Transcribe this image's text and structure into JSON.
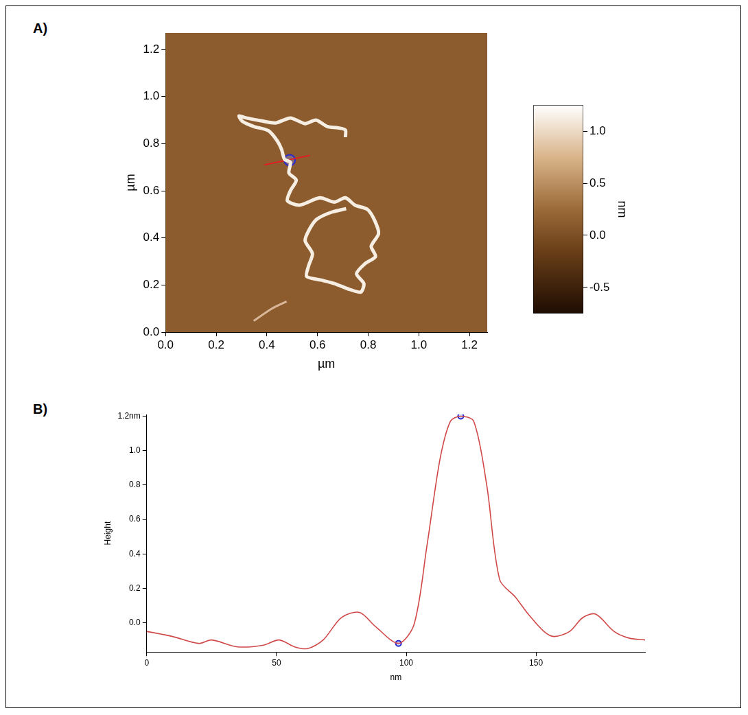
{
  "chart_data": [
    {
      "type": "line",
      "panel_label": "A)",
      "x_label": "µm",
      "y_label": "µm",
      "xlim": [
        0,
        1.27
      ],
      "ylim": [
        0,
        1.27
      ],
      "xticks": [
        {
          "value": 0,
          "label": "0.0"
        },
        0.2,
        0.4,
        0.6,
        0.8,
        {
          "value": 1,
          "label": "1.0"
        },
        1.2
      ],
      "yticks": [
        {
          "value": 0,
          "label": "0.0"
        },
        0.2,
        0.4,
        0.6,
        0.8,
        {
          "value": 1,
          "label": "1.0"
        },
        1.2
      ],
      "grid": false,
      "series": [
        {
          "color": "#f6eee2",
          "marker": "none",
          "line_style": "solid",
          "x": [
            0.71,
            0.71,
            0.681,
            0.638,
            0.594,
            0.551,
            0.493,
            0.435,
            0.377,
            0.319,
            0.29,
            0.304,
            0.348,
            0.406,
            0.441,
            0.458,
            0.47,
            0.493,
            0.487,
            0.516,
            0.493,
            0.481,
            0.528,
            0.609,
            0.667,
            0.71,
            0.748,
            0.797,
            0.826,
            0.841,
            0.812,
            0.829,
            0.788,
            0.754,
            0.783,
            0.771,
            0.725,
            0.667,
            0.614,
            0.557,
            0.565,
            0.58,
            0.551,
            0.568,
            0.597,
            0.655,
            0.713
          ],
          "values": [
            0.827,
            0.858,
            0.867,
            0.873,
            0.9,
            0.885,
            0.909,
            0.888,
            0.897,
            0.909,
            0.918,
            0.894,
            0.873,
            0.855,
            0.812,
            0.776,
            0.733,
            0.721,
            0.676,
            0.645,
            0.6,
            0.558,
            0.539,
            0.57,
            0.552,
            0.57,
            0.539,
            0.521,
            0.473,
            0.418,
            0.364,
            0.321,
            0.291,
            0.248,
            0.206,
            0.17,
            0.182,
            0.206,
            0.221,
            0.236,
            0.282,
            0.333,
            0.388,
            0.436,
            0.479,
            0.509,
            0.524
          ]
        },
        {
          "color": "#d9b89a",
          "marker": "none",
          "line_style": "solid",
          "x": [
            0.348,
            0.42,
            0.478
          ],
          "values": [
            0.048,
            0.1,
            0.13
          ]
        },
        {
          "color": "#e02020",
          "marker": "none",
          "line_style": "solid",
          "x": [
            0.39,
            0.57
          ],
          "values": [
            0.71,
            0.75
          ]
        },
        {
          "color": "#2a2ad0",
          "marker": "circle",
          "line_style": "none",
          "x": [
            0.49
          ],
          "values": [
            0.73
          ]
        }
      ],
      "colorbar": {
        "label": "nm",
        "range": [
          -0.75,
          1.25
        ],
        "ticks": [
          -0.5,
          {
            "value": 0,
            "label": "0.0"
          },
          0.5,
          {
            "value": 1,
            "label": "1.0"
          }
        ]
      }
    },
    {
      "type": "line",
      "panel_label": "B)",
      "x_label": "nm",
      "y_label": "Height",
      "xlim": [
        0,
        192
      ],
      "ylim": [
        -0.17,
        1.21
      ],
      "xticks": [
        0,
        50,
        100,
        150
      ],
      "yticks": [
        {
          "value": 0,
          "label": "0.0"
        },
        0.2,
        0.4,
        0.6,
        0.8,
        {
          "value": 1,
          "label": "1.0"
        },
        {
          "value": 1.2,
          "label": "1.2nm"
        }
      ],
      "grid": false,
      "series": [
        {
          "color": "#d04848",
          "marker": "none",
          "line_style": "solid",
          "x": [
            0,
            10,
            20,
            25,
            35,
            45,
            51,
            57,
            62,
            68,
            75,
            82,
            88,
            97,
            103,
            108,
            113,
            117,
            121,
            126,
            131,
            136,
            142,
            147,
            153,
            157,
            163,
            168,
            173,
            180,
            186,
            192
          ],
          "values": [
            -0.05,
            -0.08,
            -0.12,
            -0.1,
            -0.14,
            -0.13,
            -0.1,
            -0.14,
            -0.15,
            -0.1,
            0.03,
            0.06,
            -0.02,
            -0.12,
            -0.01,
            0.45,
            0.95,
            1.17,
            1.2,
            1.17,
            0.8,
            0.25,
            0.15,
            0.05,
            -0.05,
            -0.08,
            -0.05,
            0.03,
            0.05,
            -0.05,
            -0.09,
            -0.1
          ]
        },
        {
          "color": "#2a2ad0",
          "marker": "circle",
          "line_style": "none",
          "x": [
            97,
            121
          ],
          "values": [
            -0.12,
            1.2
          ]
        }
      ]
    }
  ]
}
